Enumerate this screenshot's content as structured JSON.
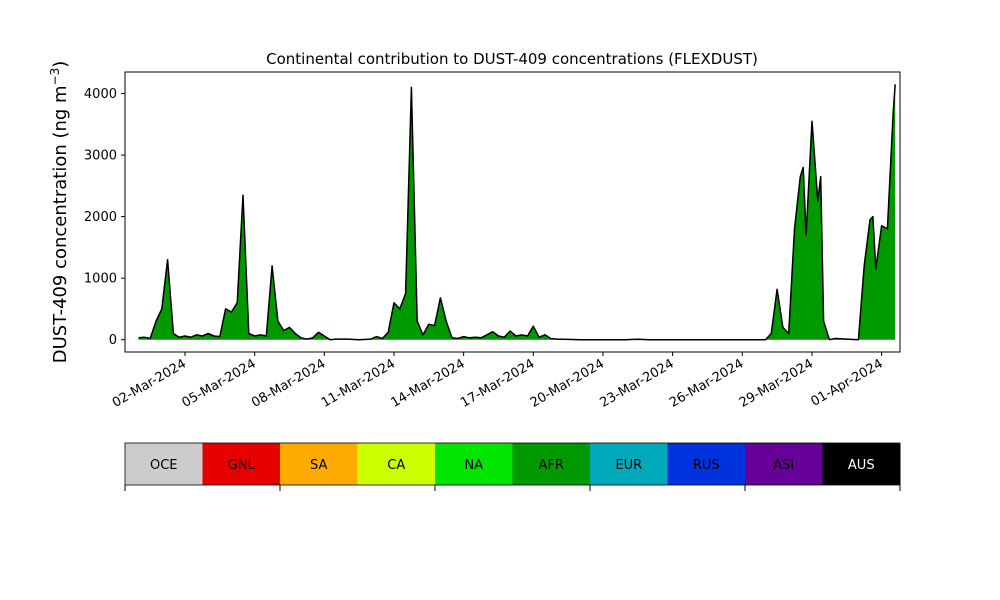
{
  "chart_data": {
    "type": "area",
    "title": "Continental contribution to DUST-409 concentrations (FLEXDUST)",
    "ylabel": "DUST-409 concentration (ng m",
    "ylabel_unit_superscript": "−3",
    "ylabel_close": ")",
    "xlabel": "",
    "x_start_date": "2024-02-29",
    "x_end_date": "2024-04-01",
    "xlim": [
      "2024-02-28T10:00",
      "2024-04-01T19:00"
    ],
    "ylim": [
      -200,
      4350
    ],
    "yticks": [
      0,
      1000,
      2000,
      3000,
      4000
    ],
    "xtick_labels": [
      "02-Mar-2024",
      "05-Mar-2024",
      "08-Mar-2024",
      "11-Mar-2024",
      "14-Mar-2024",
      "17-Mar-2024",
      "20-Mar-2024",
      "23-Mar-2024",
      "26-Mar-2024",
      "29-Mar-2024",
      "01-Apr-2024"
    ],
    "xtick_dates": [
      "2024-03-02",
      "2024-03-05",
      "2024-03-08",
      "2024-03-11",
      "2024-03-14",
      "2024-03-17",
      "2024-03-20",
      "2024-03-23",
      "2024-03-26",
      "2024-03-29",
      "2024-04-01"
    ],
    "grid": false,
    "total_color": "#000000",
    "fill_color": "#009900",
    "total_series": [
      [
        "2024-02-29T00:00",
        30
      ],
      [
        "2024-02-29T06:00",
        40
      ],
      [
        "2024-02-29T12:00",
        20
      ],
      [
        "2024-02-29T18:00",
        300
      ],
      [
        "2024-03-01T00:00",
        500
      ],
      [
        "2024-03-01T06:00",
        1300
      ],
      [
        "2024-03-01T12:00",
        100
      ],
      [
        "2024-03-01T18:00",
        40
      ],
      [
        "2024-03-02T00:00",
        60
      ],
      [
        "2024-03-02T06:00",
        40
      ],
      [
        "2024-03-02T12:00",
        80
      ],
      [
        "2024-03-02T18:00",
        60
      ],
      [
        "2024-03-03T00:00",
        100
      ],
      [
        "2024-03-03T06:00",
        60
      ],
      [
        "2024-03-03T12:00",
        50
      ],
      [
        "2024-03-03T18:00",
        500
      ],
      [
        "2024-03-04T00:00",
        450
      ],
      [
        "2024-03-04T06:00",
        600
      ],
      [
        "2024-03-04T12:00",
        2350
      ],
      [
        "2024-03-04T18:00",
        100
      ],
      [
        "2024-03-05T00:00",
        60
      ],
      [
        "2024-03-05T06:00",
        80
      ],
      [
        "2024-03-05T12:00",
        60
      ],
      [
        "2024-03-05T18:00",
        1200
      ],
      [
        "2024-03-06T00:00",
        300
      ],
      [
        "2024-03-06T06:00",
        150
      ],
      [
        "2024-03-06T12:00",
        200
      ],
      [
        "2024-03-06T18:00",
        100
      ],
      [
        "2024-03-07T00:00",
        30
      ],
      [
        "2024-03-07T06:00",
        10
      ],
      [
        "2024-03-07T12:00",
        30
      ],
      [
        "2024-03-07T18:00",
        120
      ],
      [
        "2024-03-08T00:00",
        60
      ],
      [
        "2024-03-08T06:00",
        0
      ],
      [
        "2024-03-08T12:00",
        10
      ],
      [
        "2024-03-09T00:00",
        10
      ],
      [
        "2024-03-09T12:00",
        0
      ],
      [
        "2024-03-10T00:00",
        10
      ],
      [
        "2024-03-10T06:00",
        50
      ],
      [
        "2024-03-10T12:00",
        20
      ],
      [
        "2024-03-10T18:00",
        120
      ],
      [
        "2024-03-11T00:00",
        600
      ],
      [
        "2024-03-11T06:00",
        500
      ],
      [
        "2024-03-11T12:00",
        750
      ],
      [
        "2024-03-11T18:00",
        4100
      ],
      [
        "2024-03-12T00:00",
        300
      ],
      [
        "2024-03-12T06:00",
        80
      ],
      [
        "2024-03-12T12:00",
        250
      ],
      [
        "2024-03-12T18:00",
        230
      ],
      [
        "2024-03-13T00:00",
        680
      ],
      [
        "2024-03-13T06:00",
        300
      ],
      [
        "2024-03-13T12:00",
        30
      ],
      [
        "2024-03-13T18:00",
        20
      ],
      [
        "2024-03-14T00:00",
        50
      ],
      [
        "2024-03-14T06:00",
        30
      ],
      [
        "2024-03-14T12:00",
        40
      ],
      [
        "2024-03-14T18:00",
        30
      ],
      [
        "2024-03-15T00:00",
        80
      ],
      [
        "2024-03-15T06:00",
        130
      ],
      [
        "2024-03-15T12:00",
        60
      ],
      [
        "2024-03-15T18:00",
        40
      ],
      [
        "2024-03-16T00:00",
        140
      ],
      [
        "2024-03-16T06:00",
        60
      ],
      [
        "2024-03-16T12:00",
        80
      ],
      [
        "2024-03-16T18:00",
        60
      ],
      [
        "2024-03-17T00:00",
        220
      ],
      [
        "2024-03-17T06:00",
        40
      ],
      [
        "2024-03-17T12:00",
        80
      ],
      [
        "2024-03-17T18:00",
        20
      ],
      [
        "2024-03-18T00:00",
        10
      ],
      [
        "2024-03-18T12:00",
        5
      ],
      [
        "2024-03-19T00:00",
        0
      ],
      [
        "2024-03-21T00:00",
        0
      ],
      [
        "2024-03-21T12:00",
        8
      ],
      [
        "2024-03-22T00:00",
        0
      ],
      [
        "2024-03-27T00:00",
        0
      ],
      [
        "2024-03-27T06:00",
        100
      ],
      [
        "2024-03-27T12:00",
        820
      ],
      [
        "2024-03-27T18:00",
        200
      ],
      [
        "2024-03-28T00:00",
        100
      ],
      [
        "2024-03-28T06:00",
        1800
      ],
      [
        "2024-03-28T12:00",
        2650
      ],
      [
        "2024-03-28T15:00",
        2800
      ],
      [
        "2024-03-28T18:00",
        1700
      ],
      [
        "2024-03-29T00:00",
        3550
      ],
      [
        "2024-03-29T06:00",
        2250
      ],
      [
        "2024-03-29T09:00",
        2650
      ],
      [
        "2024-03-29T12:00",
        300
      ],
      [
        "2024-03-29T18:00",
        0
      ],
      [
        "2024-03-30T00:00",
        20
      ],
      [
        "2024-03-30T12:00",
        10
      ],
      [
        "2024-03-31T00:00",
        0
      ],
      [
        "2024-03-31T06:00",
        1200
      ],
      [
        "2024-03-31T12:00",
        1950
      ],
      [
        "2024-03-31T15:00",
        2000
      ],
      [
        "2024-03-31T18:00",
        1150
      ],
      [
        "2024-04-01T00:00",
        1850
      ],
      [
        "2024-04-01T06:00",
        1800
      ],
      [
        "2024-04-01T12:00",
        3700
      ],
      [
        "2024-04-01T14:00",
        4150
      ]
    ],
    "legend": {
      "placement": "bottom",
      "entries": [
        {
          "label": "OCE",
          "color": "#cccccc",
          "text_color": "#000000"
        },
        {
          "label": "GNL",
          "color": "#e60000",
          "text_color": "#000000"
        },
        {
          "label": "SA",
          "color": "#ffaa00",
          "text_color": "#000000"
        },
        {
          "label": "CA",
          "color": "#ccff00",
          "text_color": "#000000"
        },
        {
          "label": "NA",
          "color": "#00e600",
          "text_color": "#000000"
        },
        {
          "label": "AFR",
          "color": "#009900",
          "text_color": "#000000"
        },
        {
          "label": "EUR",
          "color": "#00aabb",
          "text_color": "#000000"
        },
        {
          "label": "RUS",
          "color": "#0033dd",
          "text_color": "#000000"
        },
        {
          "label": "ASI",
          "color": "#660099",
          "text_color": "#000000"
        },
        {
          "label": "AUS",
          "color": "#000000",
          "text_color": "#ffffff"
        }
      ]
    }
  }
}
